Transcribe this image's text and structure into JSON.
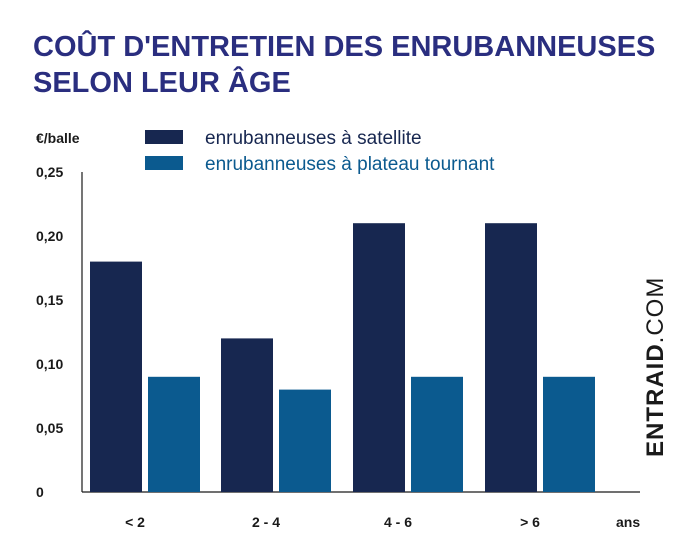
{
  "colors": {
    "title": "#2a2e7f",
    "series_dark": "#172750",
    "series_blue": "#0b5a8f",
    "axis": "#1a1a1a",
    "legend_dark": "#172750",
    "legend_blue": "#0b5a8f"
  },
  "chart_data": {
    "type": "bar",
    "title_lines": [
      "COÛT D'ENTRETIEN DES ENRUBANNEUSES",
      "SELON LEUR ÂGE"
    ],
    "ylabel": "€/balle",
    "xlabel": "ans",
    "categories": [
      "< 2",
      "2 - 4",
      "4 - 6",
      "> 6"
    ],
    "series": [
      {
        "name": "enrubanneuses à satellite",
        "values": [
          0.18,
          0.12,
          0.21,
          0.21
        ]
      },
      {
        "name": "enrubanneuses à plateau tournant",
        "values": [
          0.09,
          0.08,
          0.09,
          0.09
        ]
      }
    ],
    "yticks": [
      "0,25",
      "0,20",
      "0,15",
      "0,10",
      "0,05",
      "0"
    ],
    "ytick_values": [
      0.25,
      0.2,
      0.15,
      0.1,
      0.05,
      0
    ],
    "ylim": [
      0,
      0.25
    ],
    "grid": false,
    "legend_position": "top"
  },
  "brand": {
    "name_bold": "ENTRAID",
    "name_light": ".COM"
  }
}
